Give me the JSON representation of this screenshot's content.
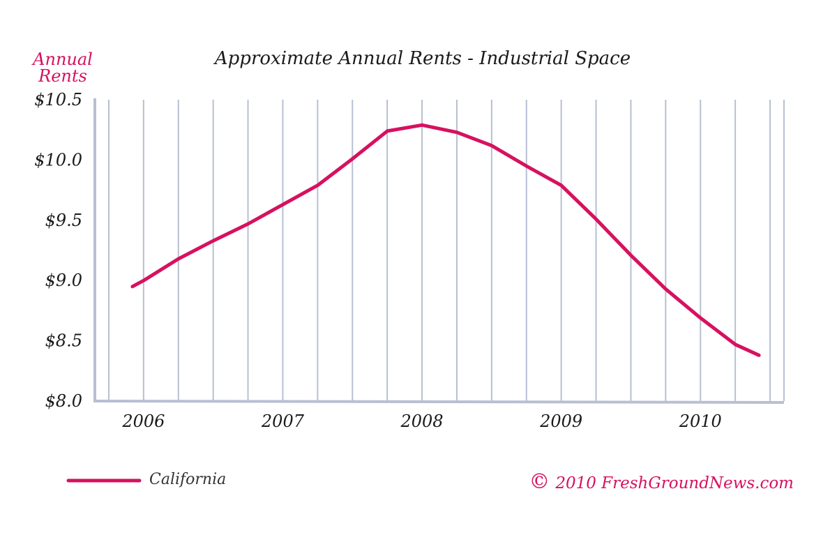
{
  "colors": {
    "series": "#d6115f",
    "grid": "#b8bfd2",
    "axis": "#b8bfd2",
    "text": "#1a1a1a"
  },
  "chart_data": {
    "type": "line",
    "title": "Approximate Annual Rents - Industrial Space",
    "ylabel_line1": "Annual",
    "ylabel_line2": "Rents",
    "xlabel": "",
    "ylim": [
      8.0,
      10.5
    ],
    "yticks": [
      8.0,
      8.5,
      9.0,
      9.5,
      10.0,
      10.5
    ],
    "ytick_labels": [
      "$8.0",
      "$8.5",
      "$9.0",
      "$9.5",
      "$10.0",
      "$10.5"
    ],
    "xlim": [
      2005.65,
      2010.6
    ],
    "xticks": [
      2006,
      2007,
      2008,
      2009,
      2010
    ],
    "xtick_labels": [
      "2006",
      "2007",
      "2008",
      "2009",
      "2010"
    ],
    "grid": "vertical",
    "legend": "bottom-left",
    "series": [
      {
        "name": "California",
        "color": "#d6115f",
        "x": [
          2005.92,
          2006.0,
          2006.25,
          2006.5,
          2006.75,
          2007.0,
          2007.25,
          2007.5,
          2007.75,
          2008.0,
          2008.25,
          2008.5,
          2008.75,
          2009.0,
          2009.25,
          2009.5,
          2009.75,
          2010.0,
          2010.25,
          2010.42
        ],
        "y": [
          8.95,
          9.0,
          9.18,
          9.33,
          9.47,
          9.63,
          9.79,
          10.01,
          10.24,
          10.29,
          10.23,
          10.12,
          9.95,
          9.79,
          9.51,
          9.21,
          8.93,
          8.69,
          8.47,
          8.38
        ]
      }
    ]
  },
  "legend": {
    "label": "California"
  },
  "copyright": {
    "symbol": "©",
    "text": "2010  FreshGroundNews.com"
  }
}
